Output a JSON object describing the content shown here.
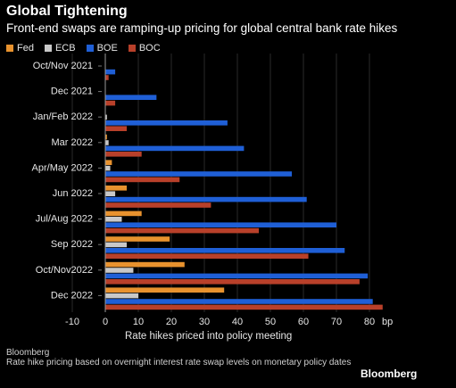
{
  "chart_data": {
    "type": "bar",
    "orientation": "horizontal",
    "title": "Global Tightening",
    "subtitle": "Front-end swaps are ramping-up pricing for global central bank rate hikes",
    "xlabel": "Rate hikes priced into policy meeting",
    "xunit": "bp",
    "xlim": [
      -10,
      85
    ],
    "xticks": [
      -10,
      0,
      10,
      20,
      30,
      40,
      50,
      60,
      70,
      80
    ],
    "grid": true,
    "legend_position": "top-left",
    "categories": [
      "Oct/Nov 2021",
      "Dec 2021",
      "Jan/Feb 2022",
      "Mar 2022",
      "Apr/May 2022",
      "Jun 2022",
      "Jul/Aug 2022",
      "Sep 2022",
      "Oct/Nov2022",
      "Dec 2022"
    ],
    "series": [
      {
        "name": "Fed",
        "color": "#e8922e",
        "values": [
          0,
          0,
          0,
          0.5,
          2,
          6.5,
          11,
          19.5,
          24,
          36
        ]
      },
      {
        "name": "ECB",
        "color": "#c8c8c8",
        "values": [
          0,
          0,
          0.5,
          1,
          1.5,
          3,
          5,
          6.5,
          8.5,
          10
        ]
      },
      {
        "name": "BOE",
        "color": "#1f5fd6",
        "values": [
          3,
          15.5,
          37,
          42,
          56.5,
          61,
          70,
          72.5,
          79.5,
          81
        ]
      },
      {
        "name": "BOC",
        "color": "#b8402a",
        "values": [
          1,
          3,
          6.5,
          11,
          22.5,
          32,
          46.5,
          61.5,
          77,
          84
        ]
      }
    ]
  },
  "footer": {
    "source": "Bloomberg",
    "note": "Rate hike pricing based on overnight interest rate swap levels on monetary policy dates"
  },
  "brand": "Bloomberg"
}
